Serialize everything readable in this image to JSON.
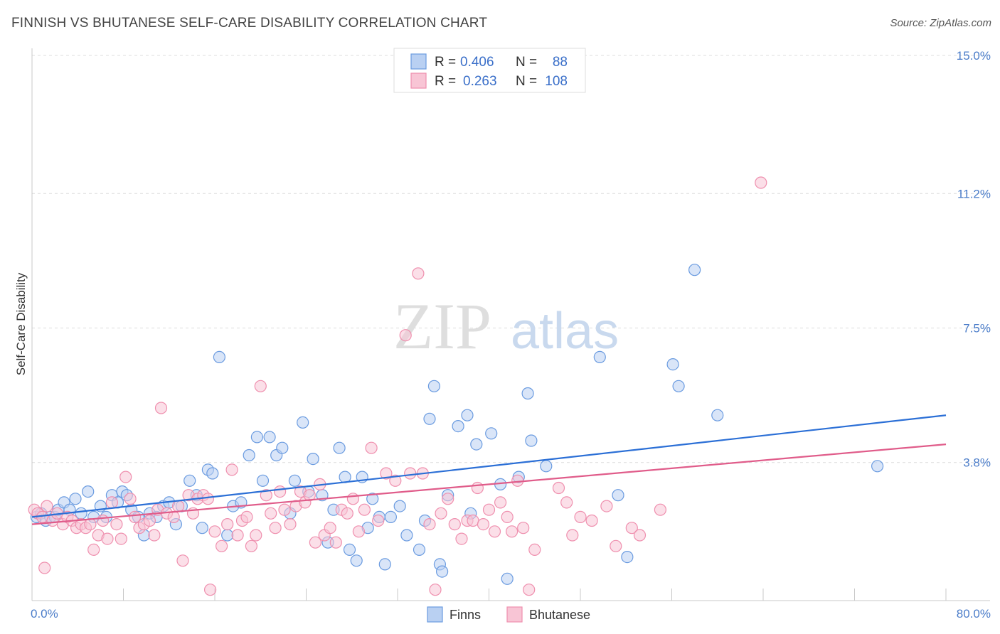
{
  "header": {
    "title": "FINNISH VS BHUTANESE SELF-CARE DISABILITY CORRELATION CHART",
    "source": "Source: ZipAtlas.com"
  },
  "legend": {
    "r_label": "R =",
    "n_label": "N =",
    "rows": [
      {
        "r": "0.406",
        "n": "88"
      },
      {
        "r": "0.263",
        "n": "108"
      }
    ]
  },
  "watermark": {
    "zip": "ZIP",
    "atlas": "atlas"
  },
  "chart_data": {
    "type": "scatter",
    "title": "FINNISH VS BHUTANESE SELF-CARE DISABILITY CORRELATION CHART",
    "ylabel": "Self-Care Disability",
    "xlabel": "",
    "xlim": [
      0,
      80
    ],
    "ylim": [
      0,
      15
    ],
    "x_tick_labels": [
      "0.0%",
      "80.0%"
    ],
    "y_ticks": [
      3.8,
      7.5,
      11.2,
      15.0
    ],
    "y_tick_labels": [
      "3.8%",
      "7.5%",
      "11.2%",
      "15.0%"
    ],
    "grid": true,
    "legend_position": "top-center",
    "series": [
      {
        "name": "Finns",
        "color": "#6a9be0",
        "fill": "#b9d0f2",
        "line_color": "#2b6fd6",
        "trend": {
          "x": [
            0,
            80
          ],
          "y": [
            2.3,
            5.1
          ]
        },
        "points": [
          [
            0.4,
            2.3
          ],
          [
            0.8,
            2.4
          ],
          [
            1.2,
            2.2
          ],
          [
            1.6,
            2.3
          ],
          [
            2.0,
            2.3
          ],
          [
            2.3,
            2.5
          ],
          [
            2.8,
            2.7
          ],
          [
            3.3,
            2.5
          ],
          [
            3.8,
            2.8
          ],
          [
            4.3,
            2.4
          ],
          [
            4.9,
            3.0
          ],
          [
            5.4,
            2.3
          ],
          [
            6.0,
            2.6
          ],
          [
            6.5,
            2.3
          ],
          [
            7.0,
            2.9
          ],
          [
            7.5,
            2.7
          ],
          [
            7.9,
            3.0
          ],
          [
            8.3,
            2.9
          ],
          [
            8.7,
            2.5
          ],
          [
            9.3,
            2.3
          ],
          [
            9.8,
            1.8
          ],
          [
            10.3,
            2.4
          ],
          [
            10.9,
            2.3
          ],
          [
            11.5,
            2.6
          ],
          [
            12.0,
            2.7
          ],
          [
            12.6,
            2.1
          ],
          [
            13.1,
            2.6
          ],
          [
            13.8,
            3.3
          ],
          [
            14.4,
            2.9
          ],
          [
            14.9,
            2.0
          ],
          [
            15.4,
            3.6
          ],
          [
            15.8,
            3.5
          ],
          [
            16.4,
            6.7
          ],
          [
            17.1,
            1.8
          ],
          [
            17.6,
            2.6
          ],
          [
            18.3,
            2.7
          ],
          [
            19.0,
            4.0
          ],
          [
            19.7,
            4.5
          ],
          [
            20.2,
            3.3
          ],
          [
            20.8,
            4.5
          ],
          [
            21.4,
            4.0
          ],
          [
            21.9,
            4.2
          ],
          [
            22.6,
            2.4
          ],
          [
            23.0,
            3.3
          ],
          [
            23.7,
            4.9
          ],
          [
            24.2,
            3.0
          ],
          [
            24.6,
            3.9
          ],
          [
            25.4,
            2.9
          ],
          [
            25.9,
            1.6
          ],
          [
            26.4,
            2.5
          ],
          [
            26.9,
            4.2
          ],
          [
            27.4,
            3.4
          ],
          [
            27.8,
            1.4
          ],
          [
            28.4,
            1.1
          ],
          [
            28.9,
            3.4
          ],
          [
            29.4,
            2.0
          ],
          [
            29.8,
            2.8
          ],
          [
            30.4,
            2.3
          ],
          [
            30.9,
            1.0
          ],
          [
            31.4,
            2.3
          ],
          [
            32.2,
            2.6
          ],
          [
            32.8,
            1.8
          ],
          [
            33.9,
            1.4
          ],
          [
            34.4,
            2.2
          ],
          [
            34.8,
            5.0
          ],
          [
            35.2,
            5.9
          ],
          [
            35.7,
            1.0
          ],
          [
            35.9,
            0.8
          ],
          [
            36.4,
            2.9
          ],
          [
            37.3,
            4.8
          ],
          [
            38.1,
            5.1
          ],
          [
            38.4,
            2.4
          ],
          [
            38.9,
            4.3
          ],
          [
            40.2,
            4.6
          ],
          [
            41.0,
            3.2
          ],
          [
            41.6,
            0.6
          ],
          [
            42.6,
            3.4
          ],
          [
            43.4,
            5.7
          ],
          [
            43.7,
            4.4
          ],
          [
            45.0,
            3.7
          ],
          [
            49.7,
            6.7
          ],
          [
            51.3,
            2.9
          ],
          [
            52.1,
            1.2
          ],
          [
            56.1,
            6.5
          ],
          [
            56.6,
            5.9
          ],
          [
            58.0,
            9.1
          ],
          [
            60.0,
            5.1
          ],
          [
            74.0,
            3.7
          ]
        ]
      },
      {
        "name": "Bhutanese",
        "color": "#ef8fae",
        "fill": "#f8c5d5",
        "line_color": "#e05c8a",
        "trend": {
          "x": [
            0,
            80
          ],
          "y": [
            2.1,
            4.3
          ]
        },
        "points": [
          [
            0.2,
            2.5
          ],
          [
            0.5,
            2.4
          ],
          [
            0.9,
            2.3
          ],
          [
            1.3,
            2.6
          ],
          [
            1.8,
            2.2
          ],
          [
            2.2,
            2.4
          ],
          [
            2.7,
            2.1
          ],
          [
            3.1,
            2.3
          ],
          [
            3.5,
            2.2
          ],
          [
            3.9,
            2.0
          ],
          [
            4.3,
            2.1
          ],
          [
            4.7,
            2.0
          ],
          [
            5.1,
            2.1
          ],
          [
            5.4,
            1.4
          ],
          [
            5.8,
            1.8
          ],
          [
            6.2,
            2.2
          ],
          [
            6.6,
            1.7
          ],
          [
            7.0,
            2.7
          ],
          [
            7.4,
            2.1
          ],
          [
            7.8,
            1.7
          ],
          [
            8.2,
            3.4
          ],
          [
            8.6,
            2.8
          ],
          [
            9.0,
            2.3
          ],
          [
            9.4,
            2.0
          ],
          [
            9.8,
            2.1
          ],
          [
            10.3,
            2.2
          ],
          [
            10.7,
            1.8
          ],
          [
            11.0,
            2.5
          ],
          [
            11.3,
            5.3
          ],
          [
            11.8,
            2.4
          ],
          [
            12.4,
            2.3
          ],
          [
            12.8,
            2.6
          ],
          [
            13.2,
            1.1
          ],
          [
            13.7,
            2.9
          ],
          [
            14.1,
            2.4
          ],
          [
            14.5,
            2.8
          ],
          [
            15.0,
            2.9
          ],
          [
            15.4,
            2.8
          ],
          [
            15.6,
            0.3
          ],
          [
            16.0,
            1.9
          ],
          [
            16.6,
            1.5
          ],
          [
            17.1,
            2.1
          ],
          [
            17.5,
            3.6
          ],
          [
            18.0,
            1.8
          ],
          [
            18.4,
            2.2
          ],
          [
            18.8,
            2.3
          ],
          [
            19.2,
            1.5
          ],
          [
            19.6,
            1.8
          ],
          [
            20.0,
            5.9
          ],
          [
            20.5,
            2.9
          ],
          [
            20.9,
            2.4
          ],
          [
            21.3,
            2.0
          ],
          [
            21.7,
            3.0
          ],
          [
            22.1,
            2.5
          ],
          [
            22.6,
            2.1
          ],
          [
            23.1,
            2.6
          ],
          [
            23.5,
            3.0
          ],
          [
            23.9,
            2.7
          ],
          [
            24.3,
            2.9
          ],
          [
            24.8,
            1.6
          ],
          [
            25.2,
            3.2
          ],
          [
            25.6,
            1.8
          ],
          [
            26.1,
            2.0
          ],
          [
            26.6,
            1.6
          ],
          [
            27.1,
            2.5
          ],
          [
            27.6,
            2.4
          ],
          [
            28.1,
            2.8
          ],
          [
            28.6,
            1.9
          ],
          [
            29.1,
            2.5
          ],
          [
            29.7,
            4.2
          ],
          [
            30.3,
            2.2
          ],
          [
            31.0,
            3.5
          ],
          [
            31.8,
            3.3
          ],
          [
            32.7,
            7.3
          ],
          [
            33.1,
            3.5
          ],
          [
            33.8,
            9.0
          ],
          [
            34.2,
            3.5
          ],
          [
            34.8,
            2.1
          ],
          [
            35.3,
            0.3
          ],
          [
            35.8,
            2.4
          ],
          [
            36.4,
            2.8
          ],
          [
            37.0,
            2.1
          ],
          [
            37.6,
            1.7
          ],
          [
            38.1,
            2.2
          ],
          [
            38.6,
            2.2
          ],
          [
            39.0,
            3.1
          ],
          [
            39.5,
            2.1
          ],
          [
            40.0,
            2.5
          ],
          [
            40.5,
            1.9
          ],
          [
            41.0,
            2.7
          ],
          [
            41.6,
            2.3
          ],
          [
            42.0,
            1.9
          ],
          [
            42.5,
            3.3
          ],
          [
            43.0,
            2.0
          ],
          [
            43.5,
            0.3
          ],
          [
            44.0,
            1.4
          ],
          [
            46.1,
            3.1
          ],
          [
            46.8,
            2.7
          ],
          [
            47.3,
            1.8
          ],
          [
            48.0,
            2.3
          ],
          [
            49.0,
            2.2
          ],
          [
            50.3,
            2.6
          ],
          [
            51.1,
            1.5
          ],
          [
            52.5,
            2.0
          ],
          [
            53.2,
            1.8
          ],
          [
            55.0,
            2.5
          ],
          [
            63.8,
            11.5
          ],
          [
            1.1,
            0.9
          ]
        ]
      }
    ]
  }
}
